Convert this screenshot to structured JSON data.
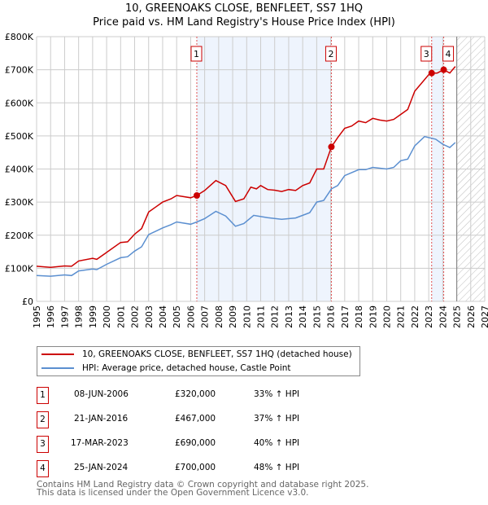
{
  "title": "10, GREENOAKS CLOSE, BENFLEET, SS7 1HQ",
  "subtitle": "Price paid vs. HM Land Registry's House Price Index (HPI)",
  "chart_data": {
    "type": "line",
    "ylim": [
      0,
      800000
    ],
    "xlim": [
      1995,
      2027
    ],
    "yticks": [
      {
        "v": 0,
        "label": "£0"
      },
      {
        "v": 100000,
        "label": "£100K"
      },
      {
        "v": 200000,
        "label": "£200K"
      },
      {
        "v": 300000,
        "label": "£300K"
      },
      {
        "v": 400000,
        "label": "£400K"
      },
      {
        "v": 500000,
        "label": "£500K"
      },
      {
        "v": 600000,
        "label": "£600K"
      },
      {
        "v": 700000,
        "label": "£700K"
      },
      {
        "v": 800000,
        "label": "£800K"
      }
    ],
    "xticks": [
      "1995",
      "1996",
      "1997",
      "1998",
      "1999",
      "2000",
      "2001",
      "2002",
      "2003",
      "2004",
      "2005",
      "2006",
      "2007",
      "2008",
      "2009",
      "2010",
      "2011",
      "2012",
      "2013",
      "2014",
      "2015",
      "2016",
      "2017",
      "2018",
      "2019",
      "2020",
      "2021",
      "2022",
      "2023",
      "2024",
      "2025",
      "2026",
      "2027"
    ],
    "forecast_start": 2025,
    "shaded_ranges": [
      [
        2006.44,
        2016.05
      ],
      [
        2023.21,
        2024.07
      ]
    ],
    "series": [
      {
        "name": "10, GREENOAKS CLOSE, BENFLEET, SS7 1HQ (detached house)",
        "color": "#cc0000",
        "x": [
          1995,
          1996,
          1997,
          1997.5,
          1998,
          1999,
          1999.3,
          2000,
          2001,
          2001.5,
          2002,
          2002.5,
          2003,
          2003.5,
          2004,
          2004.6,
          2005,
          2006,
          2006.44,
          2007,
          2007.8,
          2008.5,
          2009.2,
          2009.8,
          2010.3,
          2010.7,
          2011,
          2011.5,
          2012,
          2012.5,
          2013,
          2013.5,
          2014,
          2014.5,
          2015,
          2015.5,
          2016.05,
          2016.5,
          2017,
          2017.5,
          2018,
          2018.5,
          2019,
          2019.5,
          2020,
          2020.5,
          2021,
          2021.5,
          2022,
          2022.5,
          2023,
          2023.21,
          2023.6,
          2024.07,
          2024.5,
          2024.9
        ],
        "y": [
          106000,
          103000,
          107000,
          106000,
          122000,
          130000,
          127000,
          148000,
          178000,
          180000,
          203000,
          220000,
          270000,
          285000,
          300000,
          310000,
          320000,
          313000,
          320000,
          335000,
          365000,
          350000,
          302000,
          310000,
          345000,
          340000,
          350000,
          338000,
          336000,
          332000,
          338000,
          335000,
          350000,
          358000,
          400000,
          400000,
          467000,
          495000,
          523000,
          530000,
          545000,
          540000,
          553000,
          548000,
          545000,
          550000,
          565000,
          580000,
          635000,
          660000,
          685000,
          690000,
          690000,
          700000,
          690000,
          710000
        ]
      },
      {
        "name": "HPI: Average price, detached house, Castle Point",
        "color": "#5b8fd0",
        "x": [
          1995,
          1996,
          1997,
          1997.5,
          1998,
          1999,
          1999.3,
          2000,
          2001,
          2001.5,
          2002,
          2002.5,
          2003,
          2003.5,
          2004,
          2004.6,
          2005,
          2006,
          2006.44,
          2007,
          2007.8,
          2008.5,
          2009.2,
          2009.8,
          2010.5,
          2011.5,
          2012.5,
          2013.5,
          2014.5,
          2015,
          2015.5,
          2016.05,
          2016.5,
          2017,
          2018,
          2018.5,
          2019,
          2020,
          2020.5,
          2021,
          2021.5,
          2022,
          2022.7,
          2023.5,
          2024,
          2024.5,
          2024.9
        ],
        "y": [
          78000,
          76000,
          80000,
          78000,
          92000,
          98000,
          96000,
          112000,
          132000,
          135000,
          152000,
          165000,
          202000,
          212000,
          222000,
          232000,
          240000,
          233000,
          240000,
          250000,
          272000,
          258000,
          227000,
          235000,
          260000,
          253000,
          248000,
          252000,
          268000,
          300000,
          305000,
          340000,
          350000,
          380000,
          398000,
          398000,
          405000,
          400000,
          405000,
          425000,
          430000,
          470000,
          498000,
          490000,
          475000,
          465000,
          480000
        ]
      }
    ],
    "transactions": [
      {
        "label": "1",
        "date": "08-JUN-2006",
        "x": 2006.44,
        "price": "£320,000",
        "value": 320000,
        "hpi": "33% ↑ HPI"
      },
      {
        "label": "2",
        "date": "21-JAN-2016",
        "x": 2016.05,
        "price": "£467,000",
        "value": 467000,
        "hpi": "37% ↑ HPI"
      },
      {
        "label": "3",
        "date": "17-MAR-2023",
        "x": 2023.21,
        "price": "£690,000",
        "value": 690000,
        "hpi": "40% ↑ HPI"
      },
      {
        "label": "4",
        "date": "25-JAN-2024",
        "x": 2024.07,
        "price": "£700,000",
        "value": 700000,
        "hpi": "48% ↑ HPI"
      }
    ]
  },
  "footer": {
    "line1": "Contains HM Land Registry data © Crown copyright and database right 2025.",
    "line2": "This data is licensed under the Open Government Licence v3.0."
  }
}
